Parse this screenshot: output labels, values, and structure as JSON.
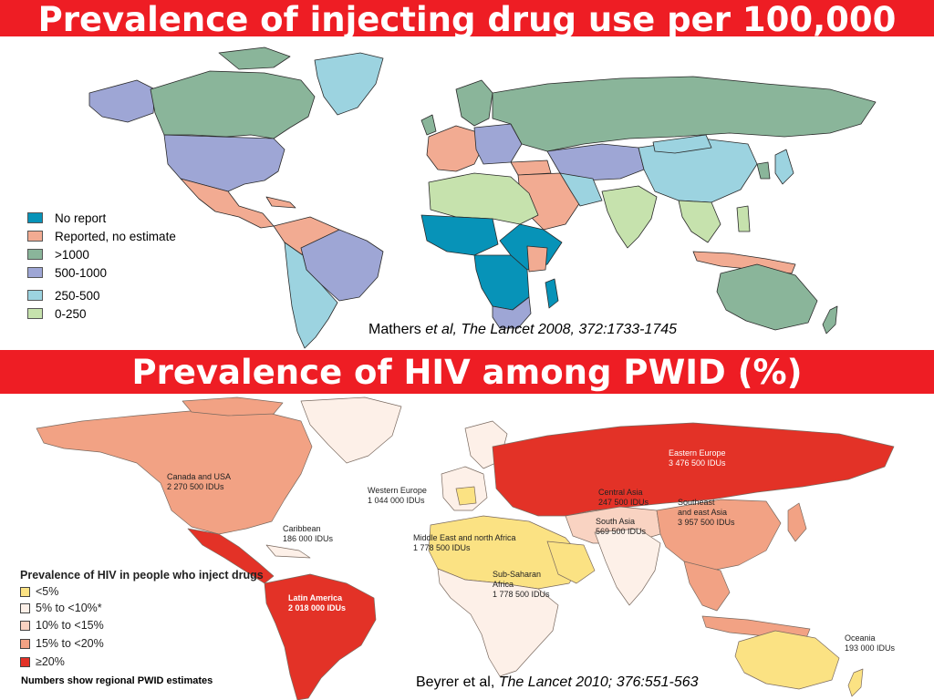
{
  "top_banner": "Prevalence of injecting drug use per 100,000",
  "middle_banner": "Prevalence of HIV among PWID (%)",
  "map1": {
    "legend": [
      {
        "label": "No report",
        "color": "#0793b8"
      },
      {
        "label": "Reported, no estimate",
        "color": "#f2ab92"
      },
      {
        "label": ">1000",
        "color": "#8ab59a"
      },
      {
        "label": "500-1000",
        "color": "#9ea6d5"
      },
      {
        "label": "250-500",
        "color": "#9cd3e0"
      },
      {
        "label": "0-250",
        "color": "#c6e2ad"
      }
    ],
    "citation_prefix": "Mathers ",
    "citation_italic": "et al, The Lancet 2008, 372:1733-1745"
  },
  "map2": {
    "legend_title": "Prevalence of HIV in people who inject drugs",
    "legend": [
      {
        "label": "<5%",
        "color": "#fbe283"
      },
      {
        "label": "5% to <10%*",
        "color": "#fdf0e8"
      },
      {
        "label": "10% to <15%",
        "color": "#f9d3c2"
      },
      {
        "label": "15% to <20%",
        "color": "#f2a284"
      },
      {
        "label": "≥20%",
        "color": "#e33227"
      }
    ],
    "regions": {
      "canada_usa": {
        "name": "Canada and USA",
        "value": "2 270 500 IDUs"
      },
      "caribbean": {
        "name": "Caribbean",
        "value": "186 000 IDUs"
      },
      "latin_america": {
        "name": "Latin America",
        "value": "2 018 000 IDUs"
      },
      "western_europe": {
        "name": "Western Europe",
        "value": "1 044 000 IDUs"
      },
      "eastern_europe": {
        "name": "Eastern Europe",
        "value": "3 476 500 IDUs"
      },
      "central_asia": {
        "name": "Central Asia",
        "value": "247 500 IDUs"
      },
      "south_asia": {
        "name": "South Asia",
        "value": "569 500 IDUs"
      },
      "southeast_asia": {
        "name_line1": "Southeast",
        "name_line2": "and east Asia",
        "value": "3 957 500 IDUs"
      },
      "middle_east": {
        "name": "Middle East and north Africa",
        "value": "1 778 500 IDUs"
      },
      "sub_saharan": {
        "name_line1": "Sub-Saharan",
        "name_line2": "Africa",
        "value": "1 778 500 IDUs"
      },
      "oceania": {
        "name": "Oceania",
        "value": "193 000 IDUs"
      }
    },
    "footnote": "Numbers show regional PWID estimates",
    "citation_prefix": "Beyrer et al, ",
    "citation_italic": "The Lancet 2010; 376:551-563"
  }
}
